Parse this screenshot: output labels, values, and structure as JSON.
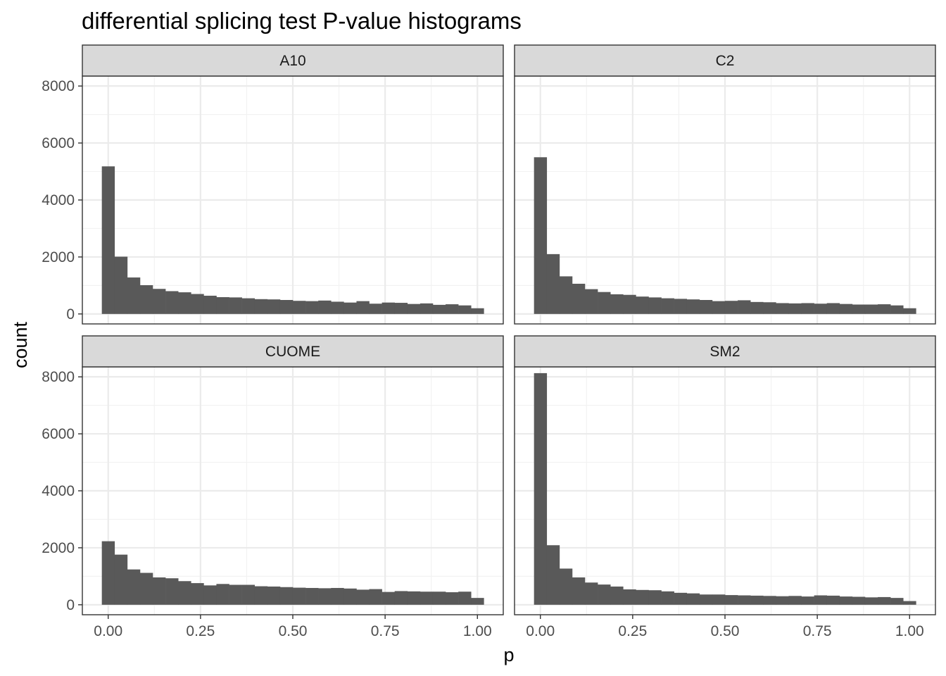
{
  "chart_data": {
    "type": "bar",
    "title": "differential splicing test P-value histograms",
    "xlabel": "p",
    "ylabel": "count",
    "xlim": [
      -0.07,
      1.07
    ],
    "ylim": [
      -350,
      8350
    ],
    "x_ticks": [
      0.0,
      0.25,
      0.5,
      0.75,
      1.0
    ],
    "x_tick_labels": [
      "0.00",
      "0.25",
      "0.50",
      "0.75",
      "1.00"
    ],
    "y_ticks": [
      0,
      2000,
      4000,
      6000,
      8000
    ],
    "y_tick_labels": [
      "0",
      "2000",
      "4000",
      "6000",
      "8000"
    ],
    "grid": true,
    "bar_color": "#595959",
    "panel_border_color": "#333333",
    "strip_fill": "#d9d9d9",
    "bin_width": 0.0345,
    "bin_centers": [
      0.0,
      0.0345,
      0.069,
      0.1034,
      0.1379,
      0.1724,
      0.2069,
      0.2414,
      0.2759,
      0.3103,
      0.3448,
      0.3793,
      0.4138,
      0.4483,
      0.4828,
      0.5172,
      0.5517,
      0.5862,
      0.6207,
      0.6552,
      0.6897,
      0.7241,
      0.7586,
      0.7931,
      0.8276,
      0.8621,
      0.8966,
      0.931,
      0.9655,
      1.0
    ],
    "panels": [
      {
        "name": "A10",
        "values": [
          5180,
          2010,
          1280,
          1010,
          880,
          800,
          760,
          700,
          640,
          590,
          580,
          550,
          520,
          510,
          490,
          460,
          450,
          470,
          430,
          400,
          450,
          360,
          400,
          390,
          350,
          370,
          320,
          340,
          300,
          200
        ]
      },
      {
        "name": "C2",
        "values": [
          5500,
          2100,
          1320,
          1060,
          870,
          770,
          690,
          670,
          610,
          580,
          550,
          530,
          510,
          490,
          450,
          460,
          480,
          420,
          410,
          380,
          370,
          380,
          360,
          380,
          350,
          330,
          330,
          340,
          300,
          200
        ]
      },
      {
        "name": "CUOME",
        "values": [
          2230,
          1760,
          1240,
          1120,
          960,
          930,
          830,
          760,
          680,
          730,
          700,
          700,
          650,
          640,
          620,
          600,
          590,
          580,
          590,
          570,
          530,
          550,
          450,
          480,
          470,
          460,
          460,
          440,
          460,
          240
        ]
      },
      {
        "name": "SM2",
        "values": [
          8130,
          2090,
          1270,
          960,
          780,
          710,
          640,
          540,
          520,
          510,
          470,
          420,
          400,
          360,
          360,
          340,
          330,
          320,
          310,
          300,
          310,
          290,
          330,
          320,
          290,
          280,
          260,
          270,
          240,
          130
        ]
      }
    ]
  }
}
